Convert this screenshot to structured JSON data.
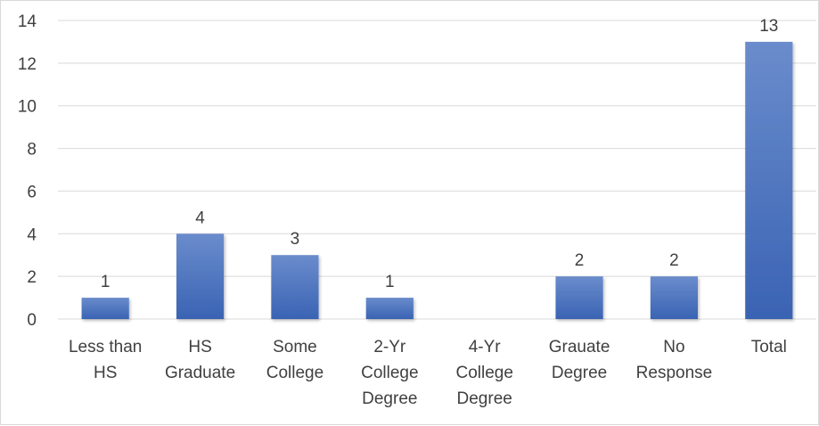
{
  "chart_data": {
    "type": "bar",
    "title": "",
    "xlabel": "",
    "ylabel": "",
    "categories": [
      [
        "Less than",
        "HS"
      ],
      [
        "HS",
        "Graduate"
      ],
      [
        "Some",
        "College"
      ],
      [
        "2-Yr",
        "College",
        "Degree"
      ],
      [
        "4-Yr",
        "College",
        "Degree"
      ],
      [
        "Grauate",
        "Degree"
      ],
      [
        "No",
        "Response"
      ],
      [
        "Total"
      ]
    ],
    "values": [
      1,
      4,
      3,
      1,
      0,
      2,
      2,
      13
    ],
    "data_labels": [
      "1",
      "4",
      "3",
      "1",
      "",
      "2",
      "2",
      "13"
    ],
    "ylim": [
      0,
      14
    ],
    "yticks": [
      0,
      2,
      4,
      6,
      8,
      10,
      12,
      14
    ],
    "grid": true,
    "legend": "none",
    "colors": {
      "bar_top": "#6a8ccc",
      "bar_bottom": "#3a63b3",
      "gridline": "#d9d9d9",
      "axis": "#d9d9d9",
      "text": "#404040"
    }
  }
}
